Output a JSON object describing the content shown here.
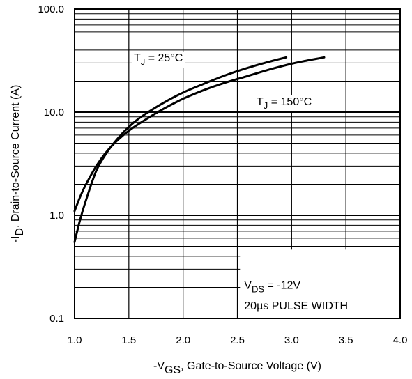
{
  "chart_data": {
    "type": "line",
    "xlabel": {
      "prefix": "-V",
      "sub": "GS",
      "suffix": ", Gate-to-Source Voltage (V)"
    },
    "ylabel": {
      "prefix": "-I",
      "sub": "D",
      "suffix": ", Drain-to-Source Current  (A)"
    },
    "xlim": [
      1.0,
      4.0
    ],
    "ylim": [
      0.1,
      100.0
    ],
    "yscale": "log",
    "x_ticks": [
      1.0,
      1.5,
      2.0,
      2.5,
      3.0,
      3.5,
      4.0
    ],
    "x_tick_labels": [
      "1.0",
      "1.5",
      "2.0",
      "2.5",
      "3.0",
      "3.5",
      "4.0"
    ],
    "y_ticks": [
      0.1,
      1.0,
      10.0,
      100.0
    ],
    "y_tick_labels": [
      "0.1",
      "1.0",
      "10.0",
      "100.0"
    ],
    "grid": true,
    "series": [
      {
        "name": "TJ = 25°C",
        "x": [
          1.0,
          1.05,
          1.1,
          1.2,
          1.3,
          1.4,
          1.5,
          1.6,
          1.8,
          2.0,
          2.2,
          2.4,
          2.6,
          2.8,
          2.95
        ],
        "y": [
          0.55,
          0.9,
          1.35,
          2.7,
          4.1,
          5.6,
          7.2,
          8.8,
          12.0,
          15.5,
          19.0,
          23.0,
          27.0,
          31.0,
          34.0
        ]
      },
      {
        "name": "TJ = 150°C",
        "x": [
          1.0,
          1.05,
          1.1,
          1.2,
          1.3,
          1.4,
          1.5,
          1.6,
          1.8,
          2.0,
          2.2,
          2.4,
          2.6,
          2.8,
          3.0,
          3.15,
          3.3
        ],
        "y": [
          1.1,
          1.5,
          1.95,
          3.0,
          4.2,
          5.4,
          6.6,
          7.8,
          10.5,
          13.5,
          16.5,
          19.5,
          22.5,
          26.0,
          29.5,
          31.8,
          34.0
        ]
      }
    ],
    "annotations": {
      "tj25": {
        "prefix": "T",
        "sub": "J",
        "suffix": " = 25°C"
      },
      "tj150": {
        "prefix": "T",
        "sub": "J",
        "suffix": " = 150°C"
      },
      "vds": {
        "prefix": "V",
        "sub": "DS",
        "suffix": " = -12V"
      },
      "pulse": "20µs PULSE WIDTH"
    }
  }
}
